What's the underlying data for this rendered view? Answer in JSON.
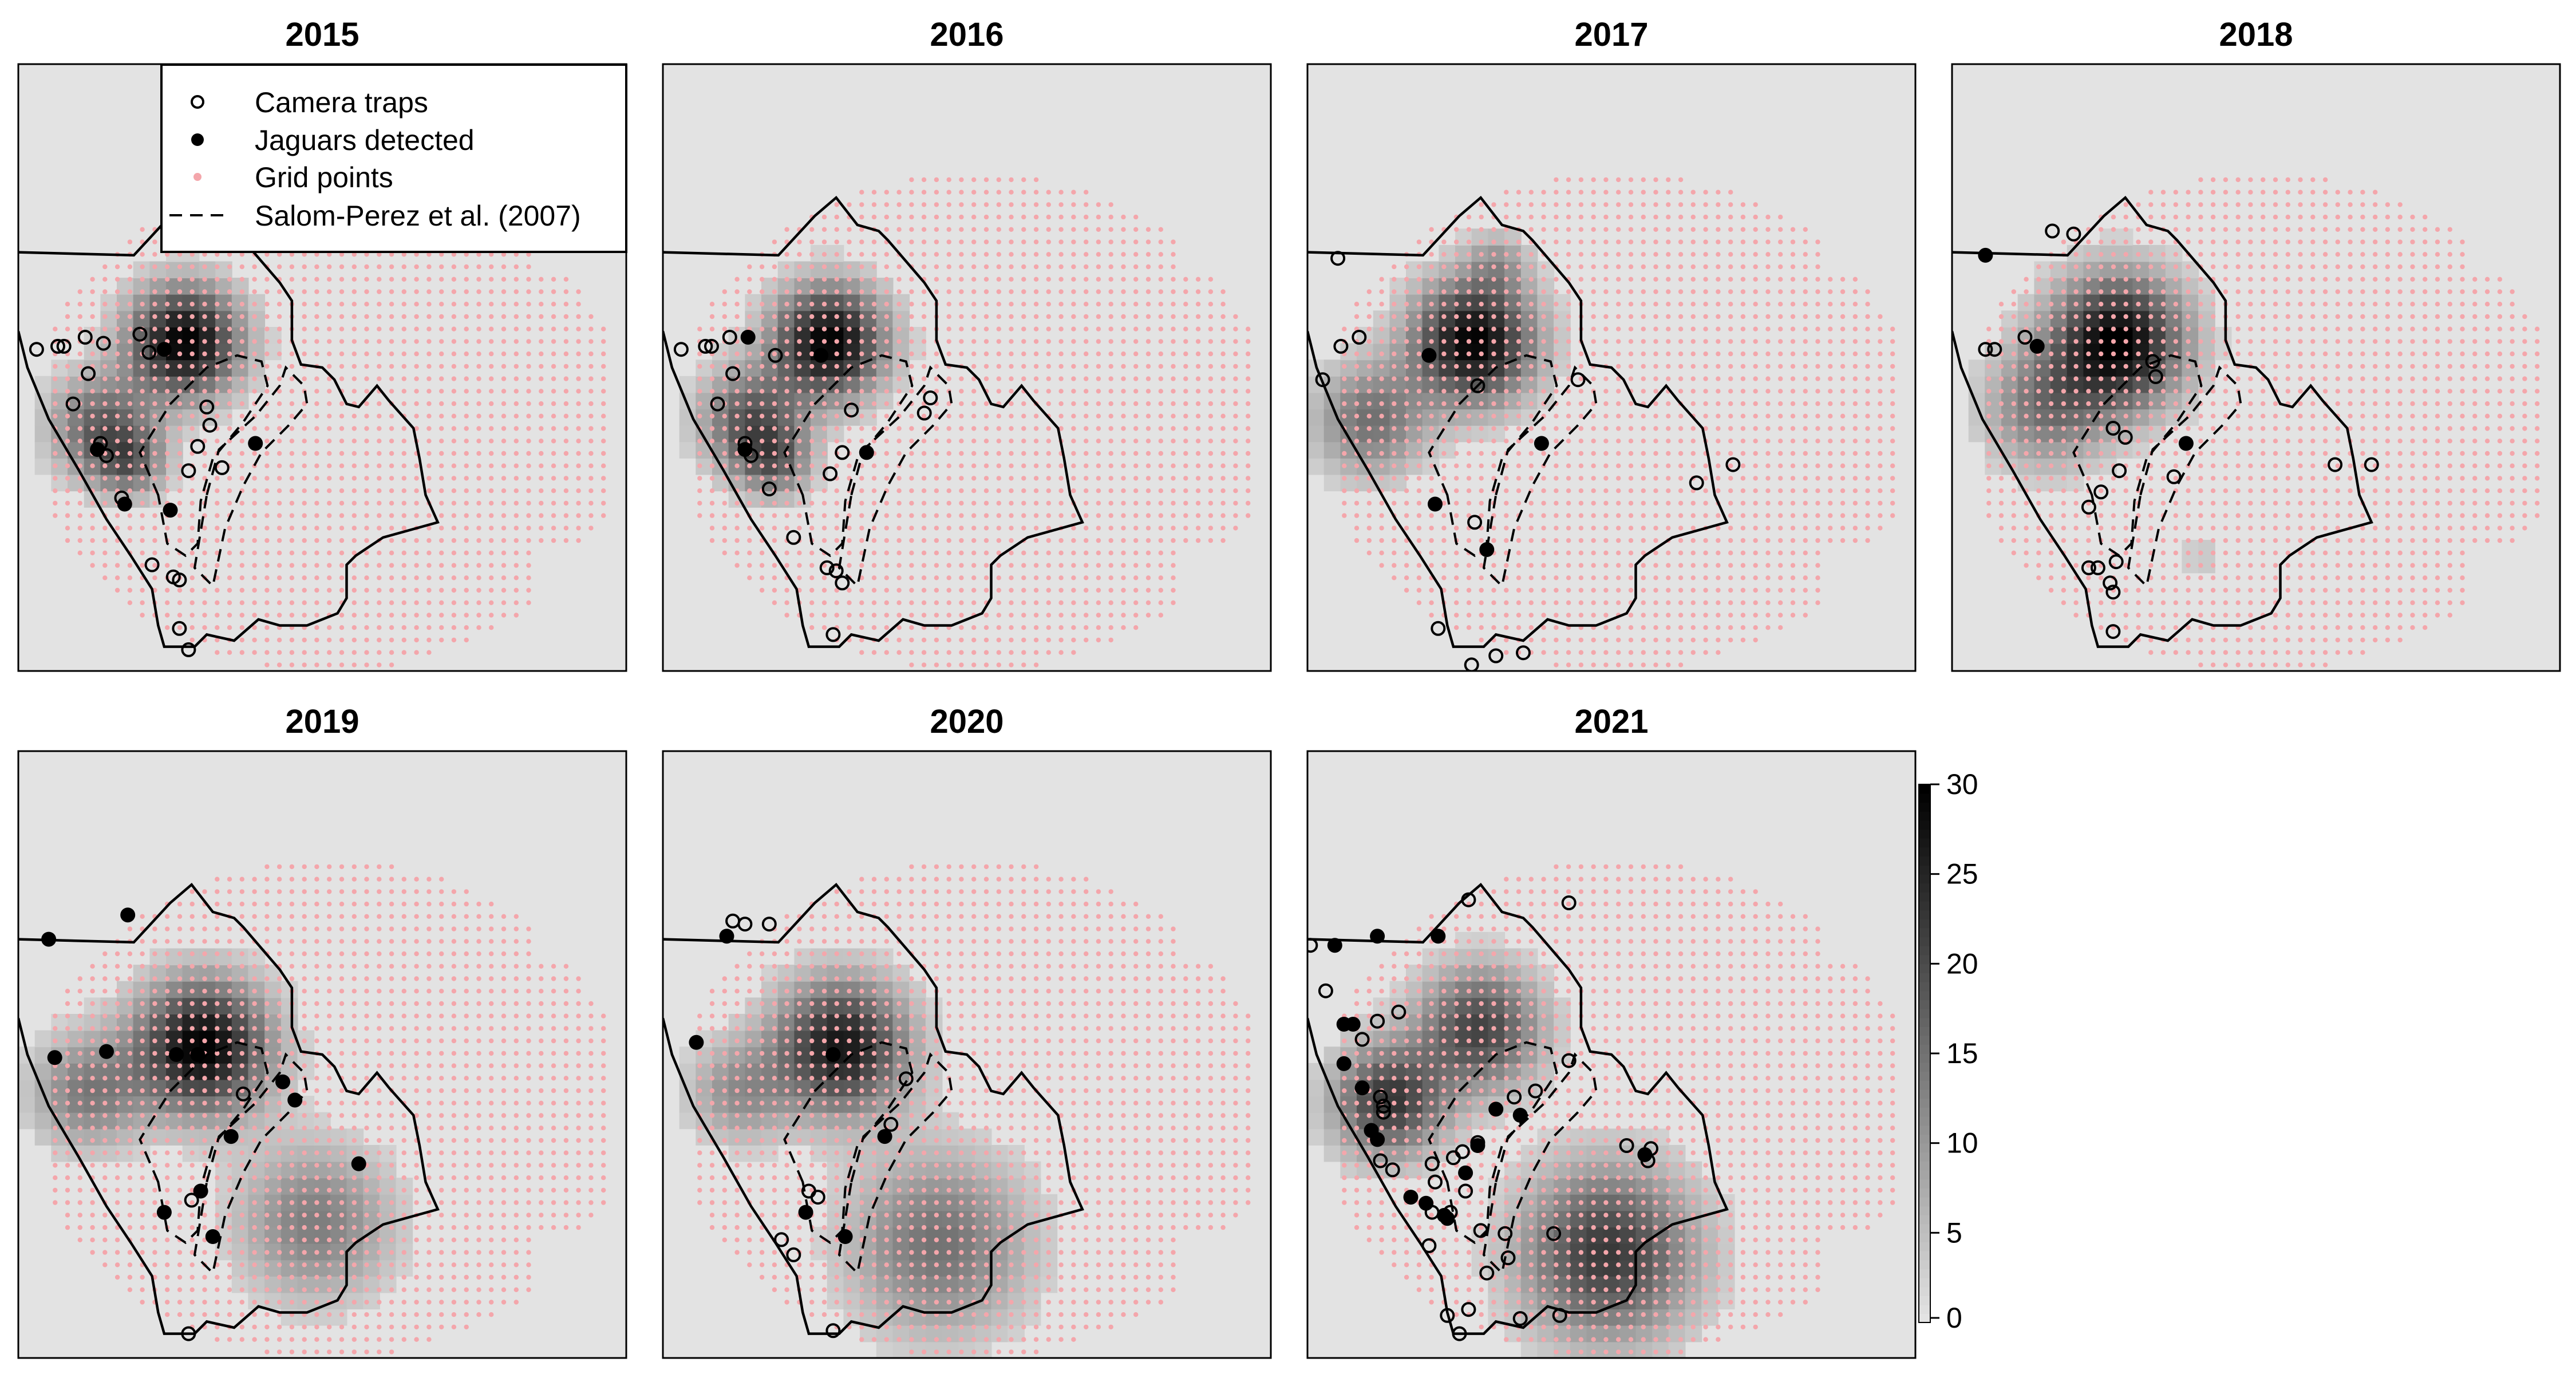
{
  "chart_data": {
    "type": "heatmap",
    "description_of_layout": "small multiples",
    "panels": [
      {
        "title": "2015",
        "camera_traps": [
          [
            -0.94,
            0.06
          ],
          [
            -0.87,
            0.07
          ],
          [
            -0.85,
            0.07
          ],
          [
            -0.78,
            0.1
          ],
          [
            -0.72,
            0.08
          ],
          [
            -0.6,
            0.11
          ],
          [
            -0.57,
            0.05
          ],
          [
            -0.77,
            -0.02
          ],
          [
            -0.82,
            -0.12
          ],
          [
            -0.73,
            -0.25
          ],
          [
            -0.71,
            -0.29
          ],
          [
            -0.66,
            -0.43
          ],
          [
            -0.56,
            -0.65
          ],
          [
            -0.49,
            -0.69
          ],
          [
            -0.47,
            -0.7
          ],
          [
            -0.47,
            -0.86
          ],
          [
            -0.44,
            -0.93
          ],
          [
            -0.44,
            -0.34
          ],
          [
            -0.41,
            -0.26
          ],
          [
            -0.38,
            -0.13
          ],
          [
            -0.33,
            -0.33
          ],
          [
            -0.37,
            -0.19
          ]
        ],
        "jaguars_detected": [
          [
            -0.52,
            0.06
          ],
          [
            -0.74,
            -0.27
          ],
          [
            -0.65,
            -0.45
          ],
          [
            -0.5,
            -0.47
          ],
          [
            -0.22,
            -0.25
          ]
        ],
        "hotspots": [
          [
            -0.48,
            0.06,
            1.0,
            0.22
          ],
          [
            -0.76,
            -0.22,
            0.55,
            0.2
          ],
          [
            -0.66,
            -0.34,
            0.45,
            0.14
          ]
        ]
      },
      {
        "title": "2016",
        "camera_traps": [
          [
            -0.94,
            0.06
          ],
          [
            -0.86,
            0.07
          ],
          [
            -0.84,
            0.07
          ],
          [
            -0.78,
            0.1
          ],
          [
            -0.63,
            0.04
          ],
          [
            -0.77,
            -0.02
          ],
          [
            -0.82,
            -0.12
          ],
          [
            -0.73,
            -0.25
          ],
          [
            -0.71,
            -0.29
          ],
          [
            -0.65,
            -0.4
          ],
          [
            -0.57,
            -0.56
          ],
          [
            -0.46,
            -0.66
          ],
          [
            -0.43,
            -0.67
          ],
          [
            -0.41,
            -0.71
          ],
          [
            -0.44,
            -0.88
          ],
          [
            -0.45,
            -0.35
          ],
          [
            -0.41,
            -0.28
          ],
          [
            -0.38,
            -0.14
          ],
          [
            -0.14,
            -0.15
          ],
          [
            -0.12,
            -0.1
          ]
        ],
        "jaguars_detected": [
          [
            -0.72,
            0.1
          ],
          [
            -0.48,
            0.04
          ],
          [
            -0.73,
            -0.27
          ],
          [
            -0.33,
            -0.28
          ]
        ],
        "hotspots": [
          [
            -0.48,
            0.06,
            1.0,
            0.22
          ],
          [
            -0.74,
            -0.2,
            0.6,
            0.2
          ],
          [
            -0.66,
            -0.34,
            0.45,
            0.14
          ]
        ]
      },
      {
        "title": "2017",
        "camera_traps": [
          [
            -0.9,
            0.36
          ],
          [
            -0.83,
            0.1
          ],
          [
            -0.89,
            0.07
          ],
          [
            -0.95,
            -0.04
          ],
          [
            -0.44,
            -0.06
          ],
          [
            -0.11,
            -0.04
          ],
          [
            -0.45,
            -0.51
          ],
          [
            -0.57,
            -0.86
          ],
          [
            -0.46,
            -0.98
          ],
          [
            -0.38,
            -0.95
          ],
          [
            -0.29,
            -0.94
          ],
          [
            0.28,
            -0.38
          ],
          [
            0.4,
            -0.32
          ]
        ],
        "jaguars_detected": [
          [
            -0.6,
            0.04
          ],
          [
            -0.23,
            -0.25
          ],
          [
            -0.58,
            -0.45
          ],
          [
            -0.41,
            -0.6
          ]
        ],
        "hotspots": [
          [
            -0.48,
            0.06,
            1.0,
            0.24
          ],
          [
            -0.82,
            -0.2,
            0.5,
            0.22
          ],
          [
            -0.4,
            0.32,
            0.25,
            0.12
          ]
        ]
      },
      {
        "title": "2018",
        "camera_traps": [
          [
            -0.6,
            0.44
          ],
          [
            -0.76,
            0.1
          ],
          [
            -0.86,
            0.06
          ],
          [
            -0.89,
            0.06
          ],
          [
            -0.67,
            0.45
          ],
          [
            -0.34,
            0.02
          ],
          [
            -0.33,
            -0.03
          ],
          [
            -0.47,
            -0.2
          ],
          [
            -0.43,
            -0.23
          ],
          [
            -0.45,
            -0.34
          ],
          [
            -0.51,
            -0.41
          ],
          [
            -0.55,
            -0.46
          ],
          [
            -0.46,
            -0.64
          ],
          [
            -0.52,
            -0.66
          ],
          [
            -0.48,
            -0.71
          ],
          [
            -0.47,
            -0.74
          ],
          [
            -0.47,
            -0.87
          ],
          [
            -0.55,
            -0.66
          ],
          [
            0.26,
            -0.32
          ],
          [
            0.38,
            -0.32
          ],
          [
            -0.27,
            -0.36
          ]
        ],
        "jaguars_detected": [
          [
            -0.89,
            0.37
          ],
          [
            -0.72,
            0.07
          ],
          [
            -0.23,
            -0.25
          ]
        ],
        "hotspots": [
          [
            -0.48,
            0.06,
            1.0,
            0.26
          ],
          [
            -0.72,
            -0.16,
            0.45,
            0.24
          ],
          [
            -0.2,
            -0.65,
            0.12,
            0.12
          ]
        ]
      },
      {
        "title": "2019",
        "camera_traps": [
          [
            -0.43,
            -0.48
          ],
          [
            -0.26,
            -0.13
          ],
          [
            -0.44,
            -0.92
          ]
        ],
        "jaguars_detected": [
          [
            -0.9,
            0.38
          ],
          [
            -0.64,
            0.46
          ],
          [
            -0.88,
            -0.01
          ],
          [
            -0.71,
            0.01
          ],
          [
            -0.41,
            0.0
          ],
          [
            -0.48,
            0.0
          ],
          [
            -0.13,
            -0.09
          ],
          [
            -0.09,
            -0.15
          ],
          [
            -0.3,
            -0.27
          ],
          [
            -0.52,
            -0.52
          ],
          [
            -0.4,
            -0.45
          ],
          [
            -0.36,
            -0.6
          ],
          [
            0.12,
            -0.36
          ]
        ],
        "hotspots": [
          [
            -0.42,
            0.0,
            1.0,
            0.26
          ],
          [
            -0.8,
            -0.15,
            0.45,
            0.22
          ],
          [
            -0.05,
            -0.58,
            0.45,
            0.3
          ]
        ]
      },
      {
        "title": "2020",
        "camera_traps": [
          [
            -0.77,
            0.44
          ],
          [
            -0.73,
            0.43
          ],
          [
            -0.65,
            0.43
          ],
          [
            -0.2,
            -0.08
          ],
          [
            -0.25,
            -0.23
          ],
          [
            -0.52,
            -0.45
          ],
          [
            -0.49,
            -0.47
          ],
          [
            -0.61,
            -0.61
          ],
          [
            -0.57,
            -0.66
          ],
          [
            -0.44,
            -0.91
          ]
        ],
        "jaguars_detected": [
          [
            -0.79,
            0.39
          ],
          [
            -0.89,
            0.04
          ],
          [
            -0.44,
            0.0
          ],
          [
            -0.27,
            -0.27
          ],
          [
            -0.53,
            -0.52
          ],
          [
            -0.4,
            -0.6
          ]
        ],
        "hotspots": [
          [
            -0.44,
            0.0,
            0.9,
            0.26
          ],
          [
            -0.78,
            -0.15,
            0.35,
            0.2
          ],
          [
            -0.12,
            -0.65,
            0.5,
            0.35
          ]
        ]
      },
      {
        "title": "2021",
        "camera_traps": [
          [
            -0.99,
            0.36
          ],
          [
            -0.94,
            0.21
          ],
          [
            -0.77,
            0.11
          ],
          [
            -0.7,
            0.14
          ],
          [
            -0.82,
            0.05
          ],
          [
            -0.76,
            -0.14
          ],
          [
            -0.75,
            -0.17
          ],
          [
            -0.75,
            -0.19
          ],
          [
            -0.76,
            -0.35
          ],
          [
            -0.72,
            -0.38
          ],
          [
            -0.59,
            -0.36
          ],
          [
            -0.58,
            -0.42
          ],
          [
            -0.59,
            -0.52
          ],
          [
            -0.53,
            -0.52
          ],
          [
            -0.48,
            -0.45
          ],
          [
            -0.52,
            -0.34
          ],
          [
            -0.49,
            -0.32
          ],
          [
            -0.44,
            -0.29
          ],
          [
            -0.32,
            -0.14
          ],
          [
            -0.25,
            -0.12
          ],
          [
            -0.14,
            -0.02
          ],
          [
            -0.17,
            -0.86
          ],
          [
            -0.3,
            -0.87
          ],
          [
            -0.19,
            -0.59
          ],
          [
            -0.34,
            -0.67
          ],
          [
            -0.41,
            -0.72
          ],
          [
            -0.47,
            -0.84
          ],
          [
            -0.5,
            -0.92
          ],
          [
            -0.54,
            -0.86
          ],
          [
            -0.6,
            -0.63
          ],
          [
            -0.43,
            -0.58
          ],
          [
            -0.35,
            -0.59
          ],
          [
            -0.47,
            0.51
          ],
          [
            -0.14,
            0.5
          ],
          [
            0.05,
            -0.3
          ],
          [
            0.12,
            -0.35
          ],
          [
            0.13,
            -0.31
          ]
        ],
        "jaguars_detected": [
          [
            -0.77,
            0.39
          ],
          [
            -0.57,
            0.39
          ],
          [
            -0.91,
            0.36
          ],
          [
            -0.88,
            0.1
          ],
          [
            -0.85,
            0.1
          ],
          [
            -0.88,
            -0.03
          ],
          [
            -0.82,
            -0.11
          ],
          [
            -0.79,
            -0.25
          ],
          [
            -0.77,
            -0.28
          ],
          [
            -0.66,
            -0.47
          ],
          [
            -0.61,
            -0.49
          ],
          [
            -0.55,
            -0.53
          ],
          [
            -0.54,
            -0.54
          ],
          [
            -0.48,
            -0.39
          ],
          [
            -0.44,
            -0.3
          ],
          [
            -0.38,
            -0.18
          ],
          [
            -0.3,
            -0.2
          ],
          [
            0.11,
            -0.33
          ]
        ],
        "hotspots": [
          [
            -0.46,
            0.06,
            0.7,
            0.24
          ],
          [
            -0.76,
            -0.18,
            0.75,
            0.22
          ],
          [
            -0.04,
            -0.68,
            0.75,
            0.34
          ]
        ]
      }
    ],
    "legend": {
      "placement": "top-left of first panel",
      "entries": [
        {
          "label": "Camera traps",
          "marker": "open circle"
        },
        {
          "label": "Jaguars detected",
          "marker": "filled circle"
        },
        {
          "label": "Grid points",
          "marker": "small pink dot",
          "color": "#f4a6ab"
        },
        {
          "label": "Salom-Perez et al. (2007)",
          "marker": "dashed line"
        }
      ]
    },
    "colorbar": {
      "range": [
        0,
        30
      ],
      "ticks": [
        "0",
        "5",
        "10",
        "15",
        "20",
        "25",
        "30"
      ],
      "colors": {
        "low": "#e3e3e3",
        "high": "#000000"
      }
    },
    "colors": {
      "panel_background": "#e3e3e3",
      "grid_points": "#f4a6ab",
      "outline": "#000000"
    }
  }
}
